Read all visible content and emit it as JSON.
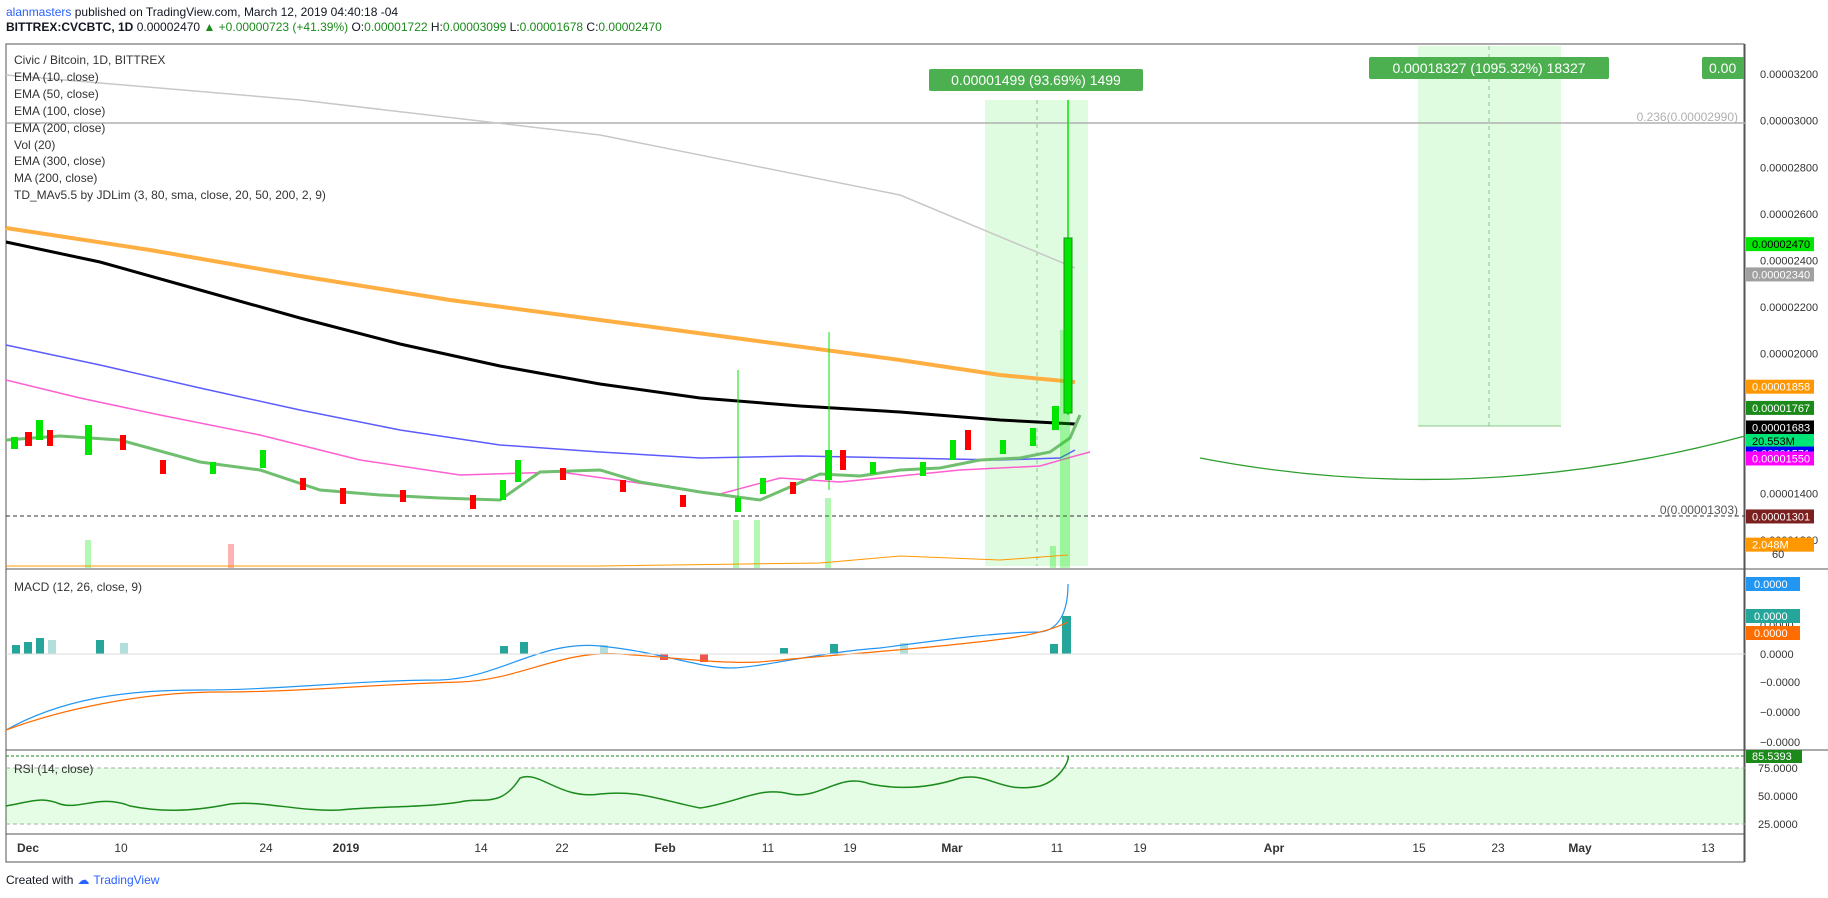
{
  "header": {
    "author": "alanmasters",
    "published_text": "published on TradingView.com, March 12, 2019 04:40:18 -04",
    "symbol": "BITTREX:CVCBTC, 1D",
    "last_price": "0.00002470",
    "change": "+0.00000723 (+41.39%)",
    "open_label": "O:",
    "open": "0.00001722",
    "high_label": "H:",
    "high": "0.00003099",
    "low_label": "L:",
    "low": "0.00001678",
    "close_label": "C:",
    "close": "0.00002470"
  },
  "legend": {
    "title": "Civic / Bitcoin, 1D, BITTREX",
    "indicators": [
      "EMA (10, close)",
      "EMA (50, close)",
      "EMA (100, close)",
      "EMA (200, close)",
      "Vol (20)",
      "EMA (300, close)",
      "MA (200, close)",
      "TD_MAv5.5 by JDLim (3, 80, sma, close, 20, 50, 200, 2, 9)"
    ]
  },
  "price_axis": {
    "ticks": [
      "0.00003200",
      "0.00003000",
      "0.00002800",
      "0.00002600",
      "0.00002400",
      "0.00002200",
      "0.00002000",
      "0.00001400",
      "0.00001200"
    ],
    "tick_values": [
      3.2e-05,
      3e-05,
      2.8e-05,
      2.6e-05,
      2.4e-05,
      2.2e-05,
      2e-05,
      1.4e-05,
      1.2e-05
    ],
    "badges": [
      {
        "text": "0.00002470",
        "value": 2.47e-05,
        "bg": "#00e600",
        "fg": "#000000"
      },
      {
        "text": "0.00002340",
        "value": 2.34e-05,
        "bg": "#a0a0a0",
        "fg": "#ffffff"
      },
      {
        "text": "0.00001858",
        "value": 1.858e-05,
        "bg": "#ff9800",
        "fg": "#ffffff"
      },
      {
        "text": "0.00001767",
        "value": 1.767e-05,
        "bg": "#1b8a1b",
        "fg": "#ffffff"
      },
      {
        "text": "0.00001683",
        "value": 1.683e-05,
        "bg": "#000000",
        "fg": "#ffffff"
      },
      {
        "text": "20.553M",
        "value": 1.625e-05,
        "bg": "#00e676",
        "fg": "#000000"
      },
      {
        "text": "0.00001571",
        "value": 1.571e-05,
        "bg": "#0000ff",
        "fg": "#ffffff"
      },
      {
        "text": "0.00001550",
        "value": 1.55e-05,
        "bg": "#ff00ff",
        "fg": "#ffffff"
      },
      {
        "text": "0.00001301",
        "value": 1.301e-05,
        "bg": "#7b1f1f",
        "fg": "#ffffff"
      },
      {
        "text": "2.048M",
        "value": 1.18e-05,
        "bg": "#ff9800",
        "fg": "#ffffff"
      }
    ],
    "vol_tick": "60"
  },
  "fib": [
    {
      "label": "0.236(0.00002990)",
      "value": 2.99e-05
    },
    {
      "label": "0(0.00001303)",
      "value": 1.303e-05
    }
  ],
  "measures": [
    {
      "text": "0.00001499 (93.69%) 1499"
    },
    {
      "text": "0.00018327 (1095.32%) 18327"
    },
    {
      "text": "0.00"
    }
  ],
  "time_axis": [
    "Dec",
    "10",
    "24",
    "2019",
    "14",
    "22",
    "Feb",
    "11",
    "19",
    "Mar",
    "11",
    "19",
    "Apr",
    "15",
    "23",
    "May",
    "13"
  ],
  "macd": {
    "label": "MACD (12, 26, close, 9)",
    "badges": [
      {
        "text": "0.0000",
        "bg": "#2196f3"
      },
      {
        "text": "0.0000",
        "bg": "#26a69a"
      },
      {
        "text": "0.0000",
        "bg": "#ff6d00"
      }
    ],
    "ticks": [
      "0.0000",
      "0.0000",
      "−0.0000",
      "−0.0000",
      "−0.0000"
    ]
  },
  "rsi": {
    "label": "RSI (14, close)",
    "value_badge": "85.5393",
    "ticks": [
      "75.0000",
      "50.0000",
      "25.0000"
    ]
  },
  "footer": {
    "created": "Created with",
    "brand": "TradingView"
  },
  "colors": {
    "up": "#00e600",
    "down": "#ff0000",
    "ema10": "#6fbf6f",
    "ema50": "#ff5fd2",
    "ema100": "#5b5bff",
    "ema200": "#000000",
    "ema300": "#ffa726",
    "ma200": "#c8c8c8"
  }
}
